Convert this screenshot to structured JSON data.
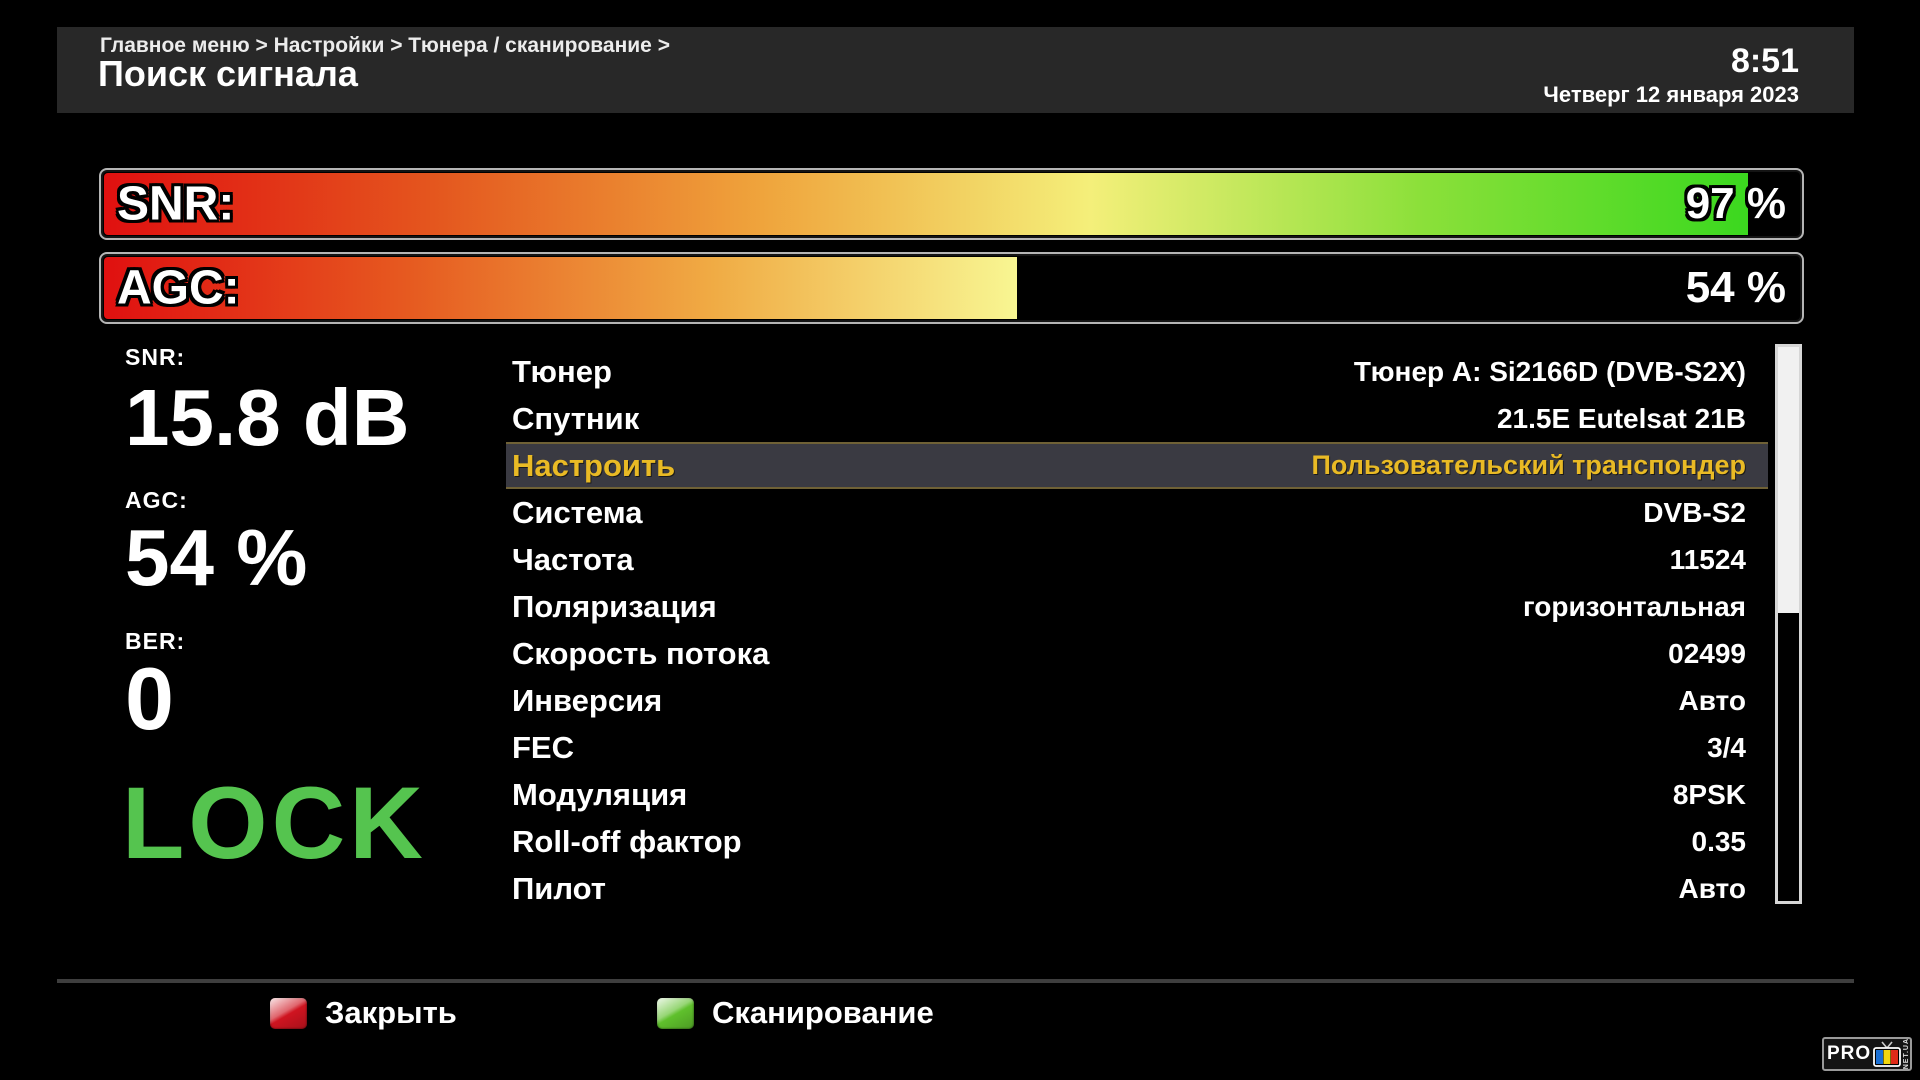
{
  "header": {
    "breadcrumb": "Главное меню > Настройки > Тюнера / сканирование >",
    "title": "Поиск сигнала",
    "time": "8:51",
    "date": "Четверг 12 января 2023"
  },
  "signal_bars": [
    {
      "id": "snr",
      "label": "SNR:",
      "percent": 97,
      "display": "97 %",
      "gradient": [
        "#e01010",
        "#e4561e",
        "#efa43c",
        "#f4ef7a",
        "#8ce03a",
        "#3bd81f"
      ]
    },
    {
      "id": "agc",
      "label": "AGC:",
      "percent": 54,
      "display": "54 %",
      "gradient": [
        "#e01010",
        "#e65a20",
        "#f0ab44",
        "#f8f692"
      ]
    }
  ],
  "stats": [
    {
      "label": "SNR:",
      "value": "15.8 dB"
    },
    {
      "label": "AGC:",
      "value": "54 %"
    },
    {
      "label": "BER:",
      "value": "0"
    }
  ],
  "lock_status": "LOCK",
  "menu": {
    "selected_index": 2,
    "items": [
      {
        "label": "Тюнер",
        "value": "Тюнер A: Si2166D (DVB-S2X)"
      },
      {
        "label": "Спутник",
        "value": "21.5E Eutelsat 21B"
      },
      {
        "label": "Настроить",
        "value": "Пользовательский транспондер"
      },
      {
        "label": "Система",
        "value": "DVB-S2"
      },
      {
        "label": "Частота",
        "value": "11524"
      },
      {
        "label": "Поляризация",
        "value": "горизонтальная"
      },
      {
        "label": "Скорость потока",
        "value": "02499"
      },
      {
        "label": "Инверсия",
        "value": "Авто"
      },
      {
        "label": "FEC",
        "value": "3/4"
      },
      {
        "label": "Модуляция",
        "value": "8PSK"
      },
      {
        "label": "Roll-off фактор",
        "value": "0.35"
      },
      {
        "label": "Пилот",
        "value": "Авто"
      }
    ]
  },
  "scrollbar": {
    "thumb_percent": 48
  },
  "footer": {
    "buttons": [
      {
        "key": "red",
        "color": "#cf1420",
        "label": "Закрыть"
      },
      {
        "key": "green",
        "color": "#5fc02c",
        "label": "Сканирование"
      }
    ]
  },
  "logo": {
    "pro": "PRO",
    "net": "NET.UA"
  },
  "colors": {
    "accent-gold": "#e9ba25",
    "lock-green": "#55c44f",
    "header-bg": "#282828",
    "bar-border": "#b5b5b5",
    "row-highlight-bg": "#3a3a42",
    "row-highlight-border": "#6f6136"
  }
}
